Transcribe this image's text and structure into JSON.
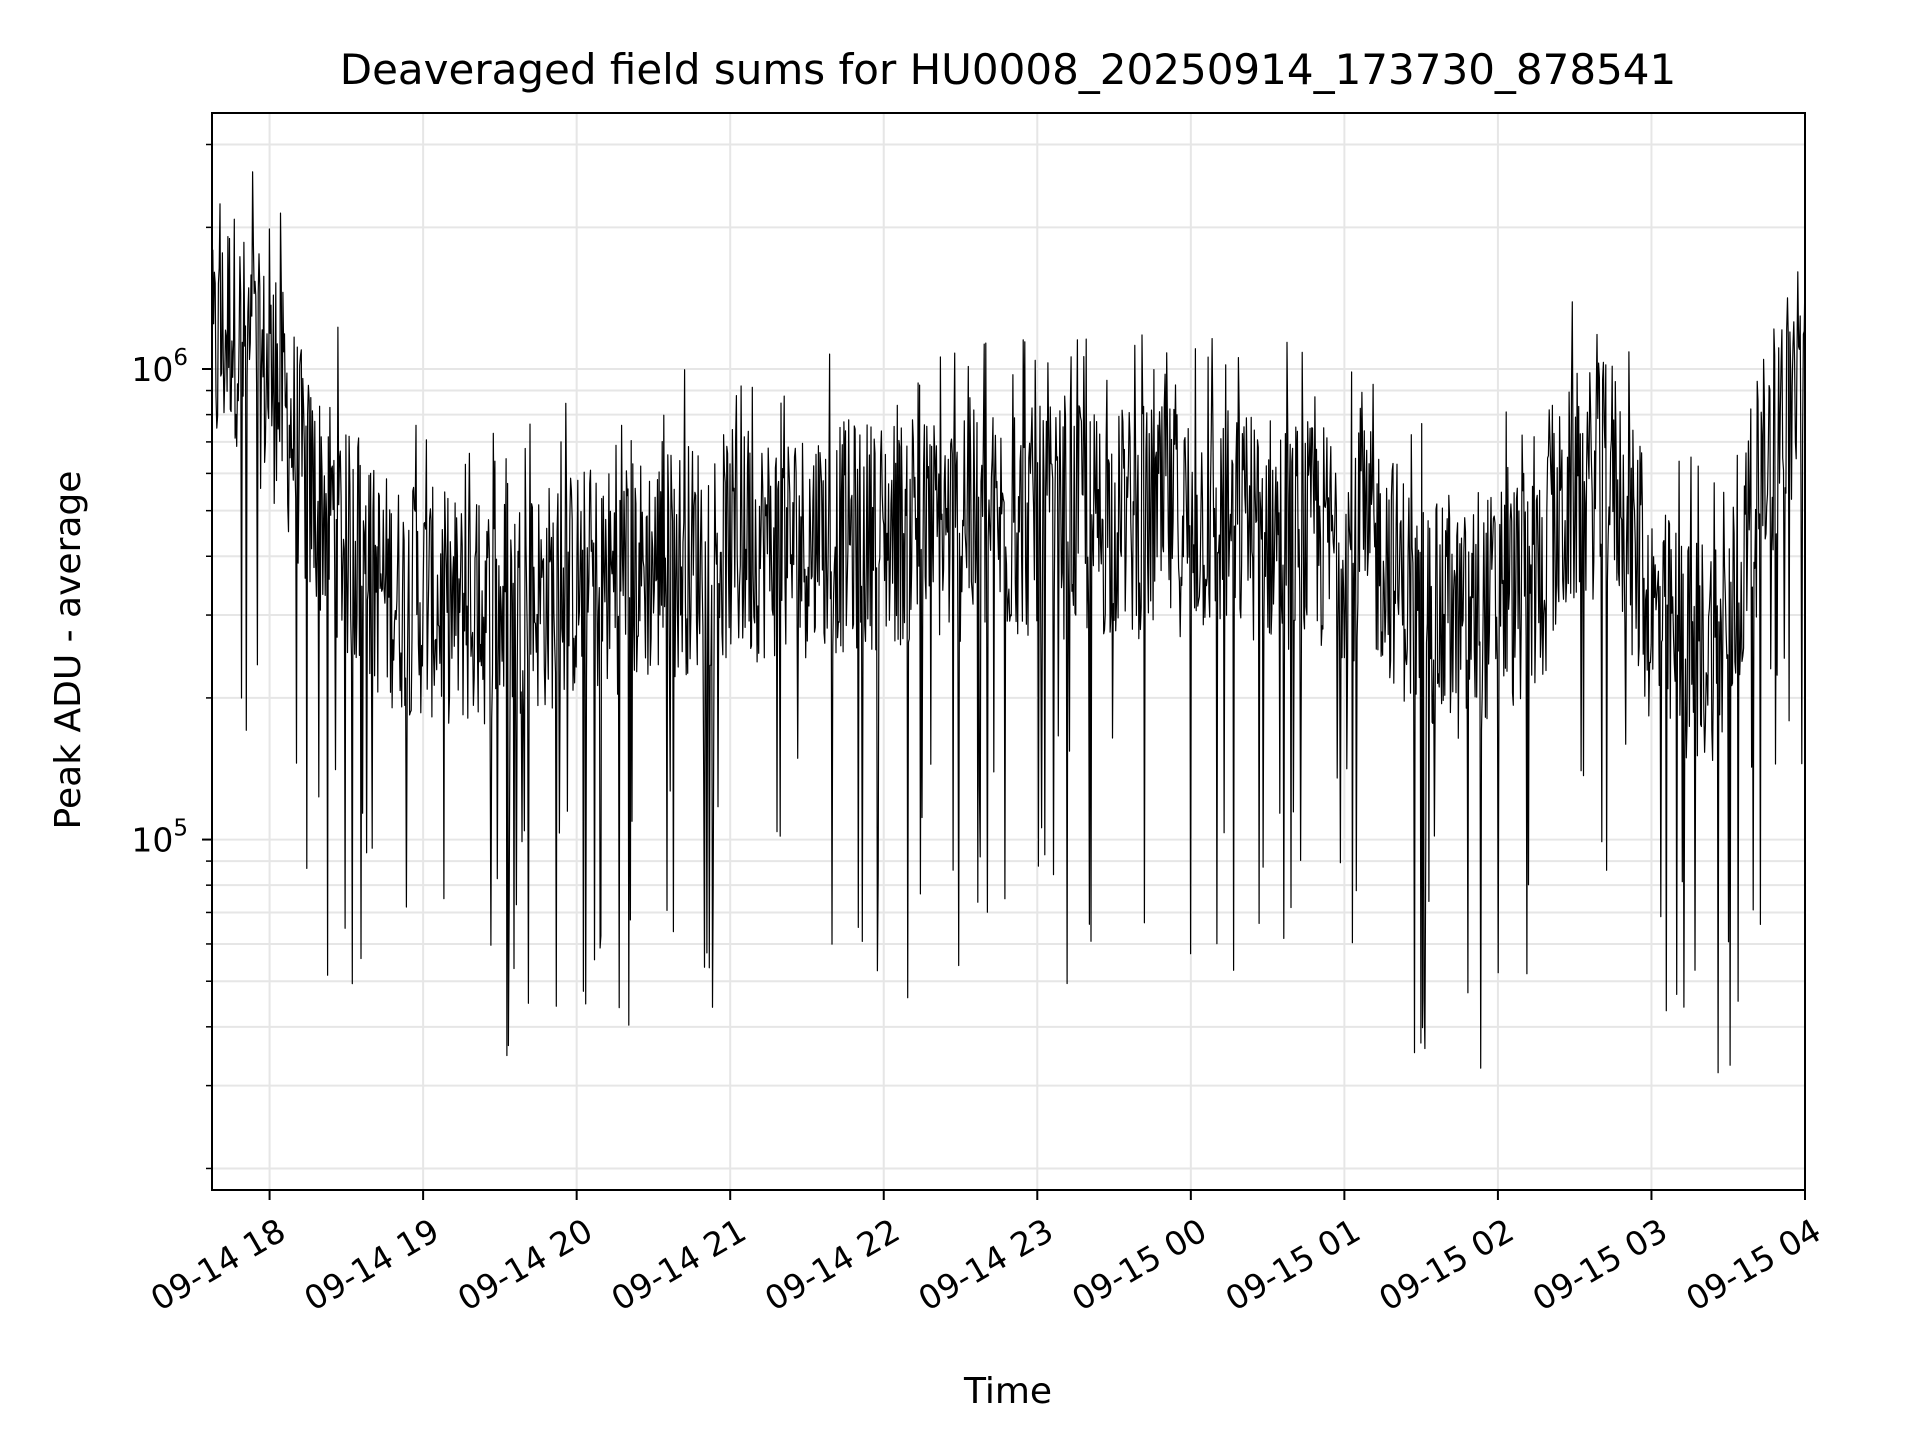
{
  "chart_data": {
    "type": "line",
    "title": "Deaveraged field sums for HU0008_20250914_173730_878541",
    "xlabel": "Time",
    "ylabel": "Peak ADU - average",
    "y_scale": "log",
    "xlim": [
      "2025-09-14 17:37:30",
      "2025-09-15 04:00:00"
    ],
    "ylim": [
      18000,
      3500000
    ],
    "x_ticks": [
      "09-14 18",
      "09-14 19",
      "09-14 20",
      "09-14 21",
      "09-14 22",
      "09-14 23",
      "09-15 00",
      "09-15 01",
      "09-15 02",
      "09-15 03",
      "09-15 04"
    ],
    "y_ticks": [
      {
        "label_base": "10",
        "label_exp": "5",
        "value": 100000
      },
      {
        "label_base": "10",
        "label_exp": "6",
        "value": 1000000
      }
    ],
    "grid": true,
    "line_color": "#000000",
    "series": [
      {
        "values_note_x": "time",
        "x": [
          "2025-09-14 17:37:30",
          "2025-09-14 17:45",
          "2025-09-14 17:50",
          "2025-09-14 17:55",
          "2025-09-14 18:00",
          "2025-09-14 18:05",
          "2025-09-14 18:10",
          "2025-09-14 18:15",
          "2025-09-14 18:20",
          "2025-09-14 18:25",
          "2025-09-14 18:30",
          "2025-09-14 18:40",
          "2025-09-14 18:50",
          "2025-09-14 19:00",
          "2025-09-14 19:10",
          "2025-09-14 19:20",
          "2025-09-14 19:30",
          "2025-09-14 19:40",
          "2025-09-14 19:50",
          "2025-09-14 20:00",
          "2025-09-14 20:15",
          "2025-09-14 20:30",
          "2025-09-14 20:45",
          "2025-09-14 21:00",
          "2025-09-14 21:30",
          "2025-09-14 22:00",
          "2025-09-14 22:30",
          "2025-09-14 23:00",
          "2025-09-14 23:30",
          "2025-09-15 00:00",
          "2025-09-15 00:30",
          "2025-09-15 00:45",
          "2025-09-15 01:00",
          "2025-09-15 01:15",
          "2025-09-15 01:30",
          "2025-09-15 01:45",
          "2025-09-15 02:00",
          "2025-09-15 02:15",
          "2025-09-15 02:30",
          "2025-09-15 02:45",
          "2025-09-15 03:00",
          "2025-09-15 03:15",
          "2025-09-15 03:30",
          "2025-09-15 03:40",
          "2025-09-15 03:50",
          "2025-09-15 04:00"
        ],
        "y": [
          1000000,
          1300000,
          1100000,
          1000000,
          950000,
          850000,
          700000,
          550000,
          520000,
          500000,
          420000,
          360000,
          330000,
          320000,
          310000,
          300000,
          310000,
          320000,
          330000,
          350000,
          360000,
          380000,
          400000,
          420000,
          430000,
          450000,
          460000,
          470000,
          470000,
          480000,
          460000,
          440000,
          430000,
          410000,
          300000,
          280000,
          320000,
          350000,
          550000,
          600000,
          300000,
          250000,
          270000,
          500000,
          800000,
          950000
        ]
      }
    ]
  }
}
